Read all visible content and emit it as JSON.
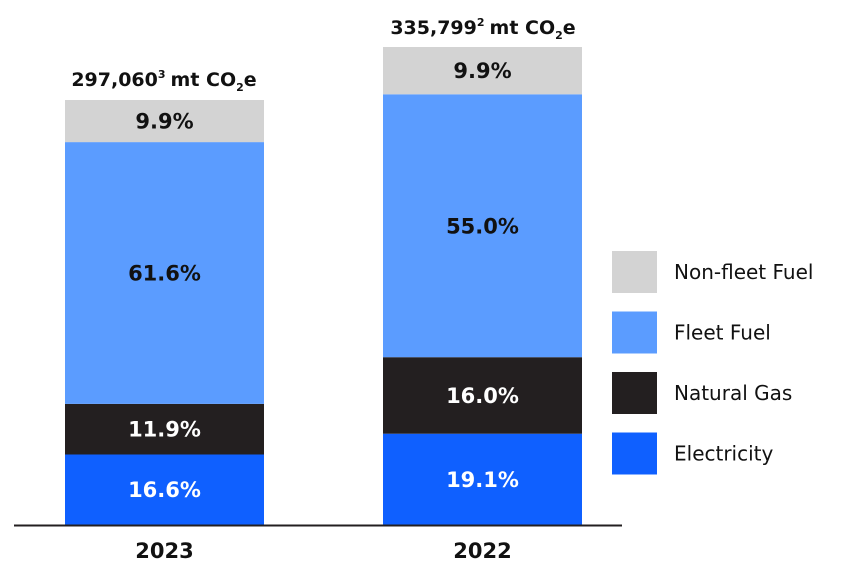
{
  "chart_data": {
    "type": "bar",
    "stacked": true,
    "unit": "%",
    "categories": [
      "2023",
      "2022"
    ],
    "totals": [
      {
        "value": "297,060",
        "footnote": "3",
        "unit_prefix": "mt CO",
        "unit_sub": "2",
        "unit_suffix": "e"
      },
      {
        "value": "335,799",
        "footnote": "2",
        "unit_prefix": "mt CO",
        "unit_sub": "2",
        "unit_suffix": "e"
      }
    ],
    "series": [
      {
        "name": "Electricity",
        "color": "#0f60ff",
        "label_color": "#ffffff",
        "values": [
          16.6,
          19.1
        ],
        "labels": [
          "16.6%",
          "19.1%"
        ]
      },
      {
        "name": "Natural Gas",
        "color": "#231f20",
        "label_color": "#ffffff",
        "values": [
          11.9,
          16.0
        ],
        "labels": [
          "11.9%",
          "16.0%"
        ]
      },
      {
        "name": "Fleet Fuel",
        "color": "#5b9cff",
        "label_color": "#111111",
        "values": [
          61.6,
          55.0
        ],
        "labels": [
          "61.6%",
          "55.0%"
        ]
      },
      {
        "name": "Non-fleet Fuel",
        "color": "#d3d3d3",
        "label_color": "#111111",
        "values": [
          9.9,
          9.9
        ],
        "labels": [
          "9.9%",
          "9.9%"
        ]
      }
    ],
    "legend_order": [
      "Non-fleet Fuel",
      "Fleet Fuel",
      "Natural Gas",
      "Electricity"
    ],
    "legend_position": "right",
    "grid": false
  }
}
